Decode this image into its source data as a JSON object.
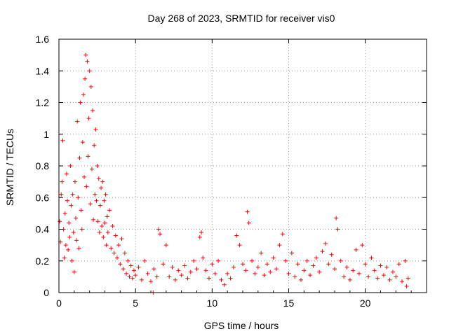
{
  "chart_data": {
    "type": "scatter",
    "title": "Day 268 of 2023, SRMTID for receiver vis0",
    "xlabel": "GPS time / hours",
    "ylabel": "SRMTID / TECUs",
    "xlim": [
      0,
      24
    ],
    "ylim": [
      0,
      1.6
    ],
    "x_ticks": [
      0,
      5,
      10,
      15,
      20
    ],
    "x_tick_labels": [
      "0",
      "5",
      "10",
      "15",
      "20"
    ],
    "y_ticks": [
      0,
      0.2,
      0.4,
      0.6,
      0.8,
      1.0,
      1.2,
      1.4,
      1.6
    ],
    "y_tick_labels": [
      "0",
      "0.2",
      "0.4",
      "0.6",
      "0.8",
      "1",
      "1.2",
      "1.4",
      "1.6"
    ],
    "grid": true,
    "marker": "+",
    "color": "#ff0000",
    "series": [
      {
        "name": "SRMTID",
        "points": [
          [
            0.05,
            0.45
          ],
          [
            0.1,
            0.32
          ],
          [
            0.15,
            0.62
          ],
          [
            0.2,
            0.7
          ],
          [
            0.25,
            0.96
          ],
          [
            0.3,
            0.4
          ],
          [
            0.35,
            0.22
          ],
          [
            0.4,
            0.5
          ],
          [
            0.45,
            0.3
          ],
          [
            0.5,
            0.75
          ],
          [
            0.55,
            0.58
          ],
          [
            0.6,
            0.27
          ],
          [
            0.65,
            0.44
          ],
          [
            0.7,
            0.35
          ],
          [
            0.75,
            0.8
          ],
          [
            0.8,
            0.55
          ],
          [
            0.85,
            0.2
          ],
          [
            0.9,
            0.62
          ],
          [
            0.95,
            0.38
          ],
          [
            1.0,
            0.13
          ],
          [
            1.05,
            0.7
          ],
          [
            1.1,
            0.47
          ],
          [
            1.15,
            0.33
          ],
          [
            1.2,
            1.08
          ],
          [
            1.25,
            0.6
          ],
          [
            1.3,
            0.28
          ],
          [
            1.35,
            0.85
          ],
          [
            1.4,
            1.2
          ],
          [
            1.45,
            0.52
          ],
          [
            1.5,
            0.4
          ],
          [
            1.55,
            0.95
          ],
          [
            1.6,
            1.25
          ],
          [
            1.65,
            0.73
          ],
          [
            1.7,
            1.35
          ],
          [
            1.75,
            1.5
          ],
          [
            1.8,
            0.67
          ],
          [
            1.85,
            1.46
          ],
          [
            1.9,
            0.86
          ],
          [
            1.95,
            1.1
          ],
          [
            2.0,
            1.4
          ],
          [
            2.05,
            0.56
          ],
          [
            2.1,
            1.3
          ],
          [
            2.15,
            0.78
          ],
          [
            2.2,
            1.15
          ],
          [
            2.25,
            0.46
          ],
          [
            2.3,
            0.93
          ],
          [
            2.35,
            0.62
          ],
          [
            2.4,
            1.03
          ],
          [
            2.45,
            0.58
          ],
          [
            2.5,
            0.8
          ],
          [
            2.55,
            0.45
          ],
          [
            2.6,
            0.72
          ],
          [
            2.65,
            0.38
          ],
          [
            2.7,
            0.55
          ],
          [
            2.75,
            0.66
          ],
          [
            2.8,
            0.42
          ],
          [
            2.85,
            0.7
          ],
          [
            2.9,
            0.35
          ],
          [
            2.95,
            0.58
          ],
          [
            3.0,
            0.44
          ],
          [
            3.05,
            0.62
          ],
          [
            3.1,
            0.3
          ],
          [
            3.15,
            0.48
          ],
          [
            3.2,
            0.38
          ],
          [
            3.3,
            0.52
          ],
          [
            3.4,
            0.28
          ],
          [
            3.5,
            0.42
          ],
          [
            3.6,
            0.25
          ],
          [
            3.7,
            0.36
          ],
          [
            3.8,
            0.22
          ],
          [
            3.9,
            0.3
          ],
          [
            4.0,
            0.18
          ],
          [
            4.1,
            0.34
          ],
          [
            4.2,
            0.15
          ],
          [
            4.3,
            0.25
          ],
          [
            4.4,
            0.12
          ],
          [
            4.5,
            0.2
          ],
          [
            4.6,
            0.1
          ],
          [
            4.7,
            0.17
          ],
          [
            4.8,
            0.09
          ],
          [
            4.9,
            0.14
          ],
          [
            5.0,
            0.11
          ],
          [
            5.2,
            0.16
          ],
          [
            5.4,
            0.08
          ],
          [
            5.6,
            0.2
          ],
          [
            5.8,
            0.12
          ],
          [
            6.0,
            0.07
          ],
          [
            6.2,
            0.15
          ],
          [
            6.4,
            0.1
          ],
          [
            6.5,
            0.4
          ],
          [
            6.6,
            0.37
          ],
          [
            6.8,
            0.18
          ],
          [
            7.0,
            0.3
          ],
          [
            7.2,
            0.1
          ],
          [
            7.4,
            0.16
          ],
          [
            7.6,
            0.08
          ],
          [
            7.8,
            0.14
          ],
          [
            8.0,
            0.11
          ],
          [
            8.2,
            0.17
          ],
          [
            8.4,
            0.09
          ],
          [
            8.6,
            0.13
          ],
          [
            8.8,
            0.2
          ],
          [
            9.0,
            0.15
          ],
          [
            9.2,
            0.35
          ],
          [
            9.3,
            0.38
          ],
          [
            9.4,
            0.22
          ],
          [
            9.6,
            0.14
          ],
          [
            9.8,
            0.09
          ],
          [
            10.0,
            0.18
          ],
          [
            10.2,
            0.12
          ],
          [
            10.4,
            0.2
          ],
          [
            10.6,
            0.08
          ],
          [
            10.8,
            0.05
          ],
          [
            11.0,
            0.12
          ],
          [
            11.2,
            0.09
          ],
          [
            11.4,
            0.16
          ],
          [
            11.6,
            0.36
          ],
          [
            11.8,
            0.3
          ],
          [
            12.0,
            0.18
          ],
          [
            12.2,
            0.14
          ],
          [
            12.3,
            0.51
          ],
          [
            12.4,
            0.44
          ],
          [
            12.6,
            0.2
          ],
          [
            12.8,
            0.12
          ],
          [
            13.0,
            0.16
          ],
          [
            13.2,
            0.25
          ],
          [
            13.4,
            0.11
          ],
          [
            13.6,
            0.18
          ],
          [
            13.8,
            0.13
          ],
          [
            14.0,
            0.22
          ],
          [
            14.2,
            0.15
          ],
          [
            14.4,
            0.3
          ],
          [
            14.6,
            0.37
          ],
          [
            14.8,
            0.2
          ],
          [
            15.0,
            0.12
          ],
          [
            15.2,
            0.25
          ],
          [
            15.4,
            0.1
          ],
          [
            15.6,
            0.18
          ],
          [
            15.8,
            0.08
          ],
          [
            16.0,
            0.14
          ],
          [
            16.2,
            0.2
          ],
          [
            16.4,
            0.11
          ],
          [
            16.6,
            0.17
          ],
          [
            16.8,
            0.22
          ],
          [
            17.0,
            0.13
          ],
          [
            17.2,
            0.26
          ],
          [
            17.4,
            0.31
          ],
          [
            17.6,
            0.18
          ],
          [
            17.8,
            0.24
          ],
          [
            18.0,
            0.15
          ],
          [
            18.1,
            0.47
          ],
          [
            18.2,
            0.4
          ],
          [
            18.4,
            0.2
          ],
          [
            18.6,
            0.1
          ],
          [
            18.8,
            0.16
          ],
          [
            19.0,
            0.08
          ],
          [
            19.2,
            0.14
          ],
          [
            19.4,
            0.27
          ],
          [
            19.6,
            0.12
          ],
          [
            19.8,
            0.3
          ],
          [
            20.0,
            0.18
          ],
          [
            20.2,
            0.1
          ],
          [
            20.4,
            0.22
          ],
          [
            20.6,
            0.14
          ],
          [
            20.8,
            0.09
          ],
          [
            21.0,
            0.17
          ],
          [
            21.2,
            0.11
          ],
          [
            21.4,
            0.16
          ],
          [
            21.6,
            0.08
          ],
          [
            21.8,
            0.13
          ],
          [
            22.0,
            0.1
          ],
          [
            22.2,
            0.18
          ],
          [
            22.4,
            0.07
          ],
          [
            22.6,
            0.2
          ],
          [
            22.7,
            0.04
          ],
          [
            22.8,
            0.09
          ],
          [
            6.15,
            0.0
          ]
        ]
      }
    ]
  }
}
